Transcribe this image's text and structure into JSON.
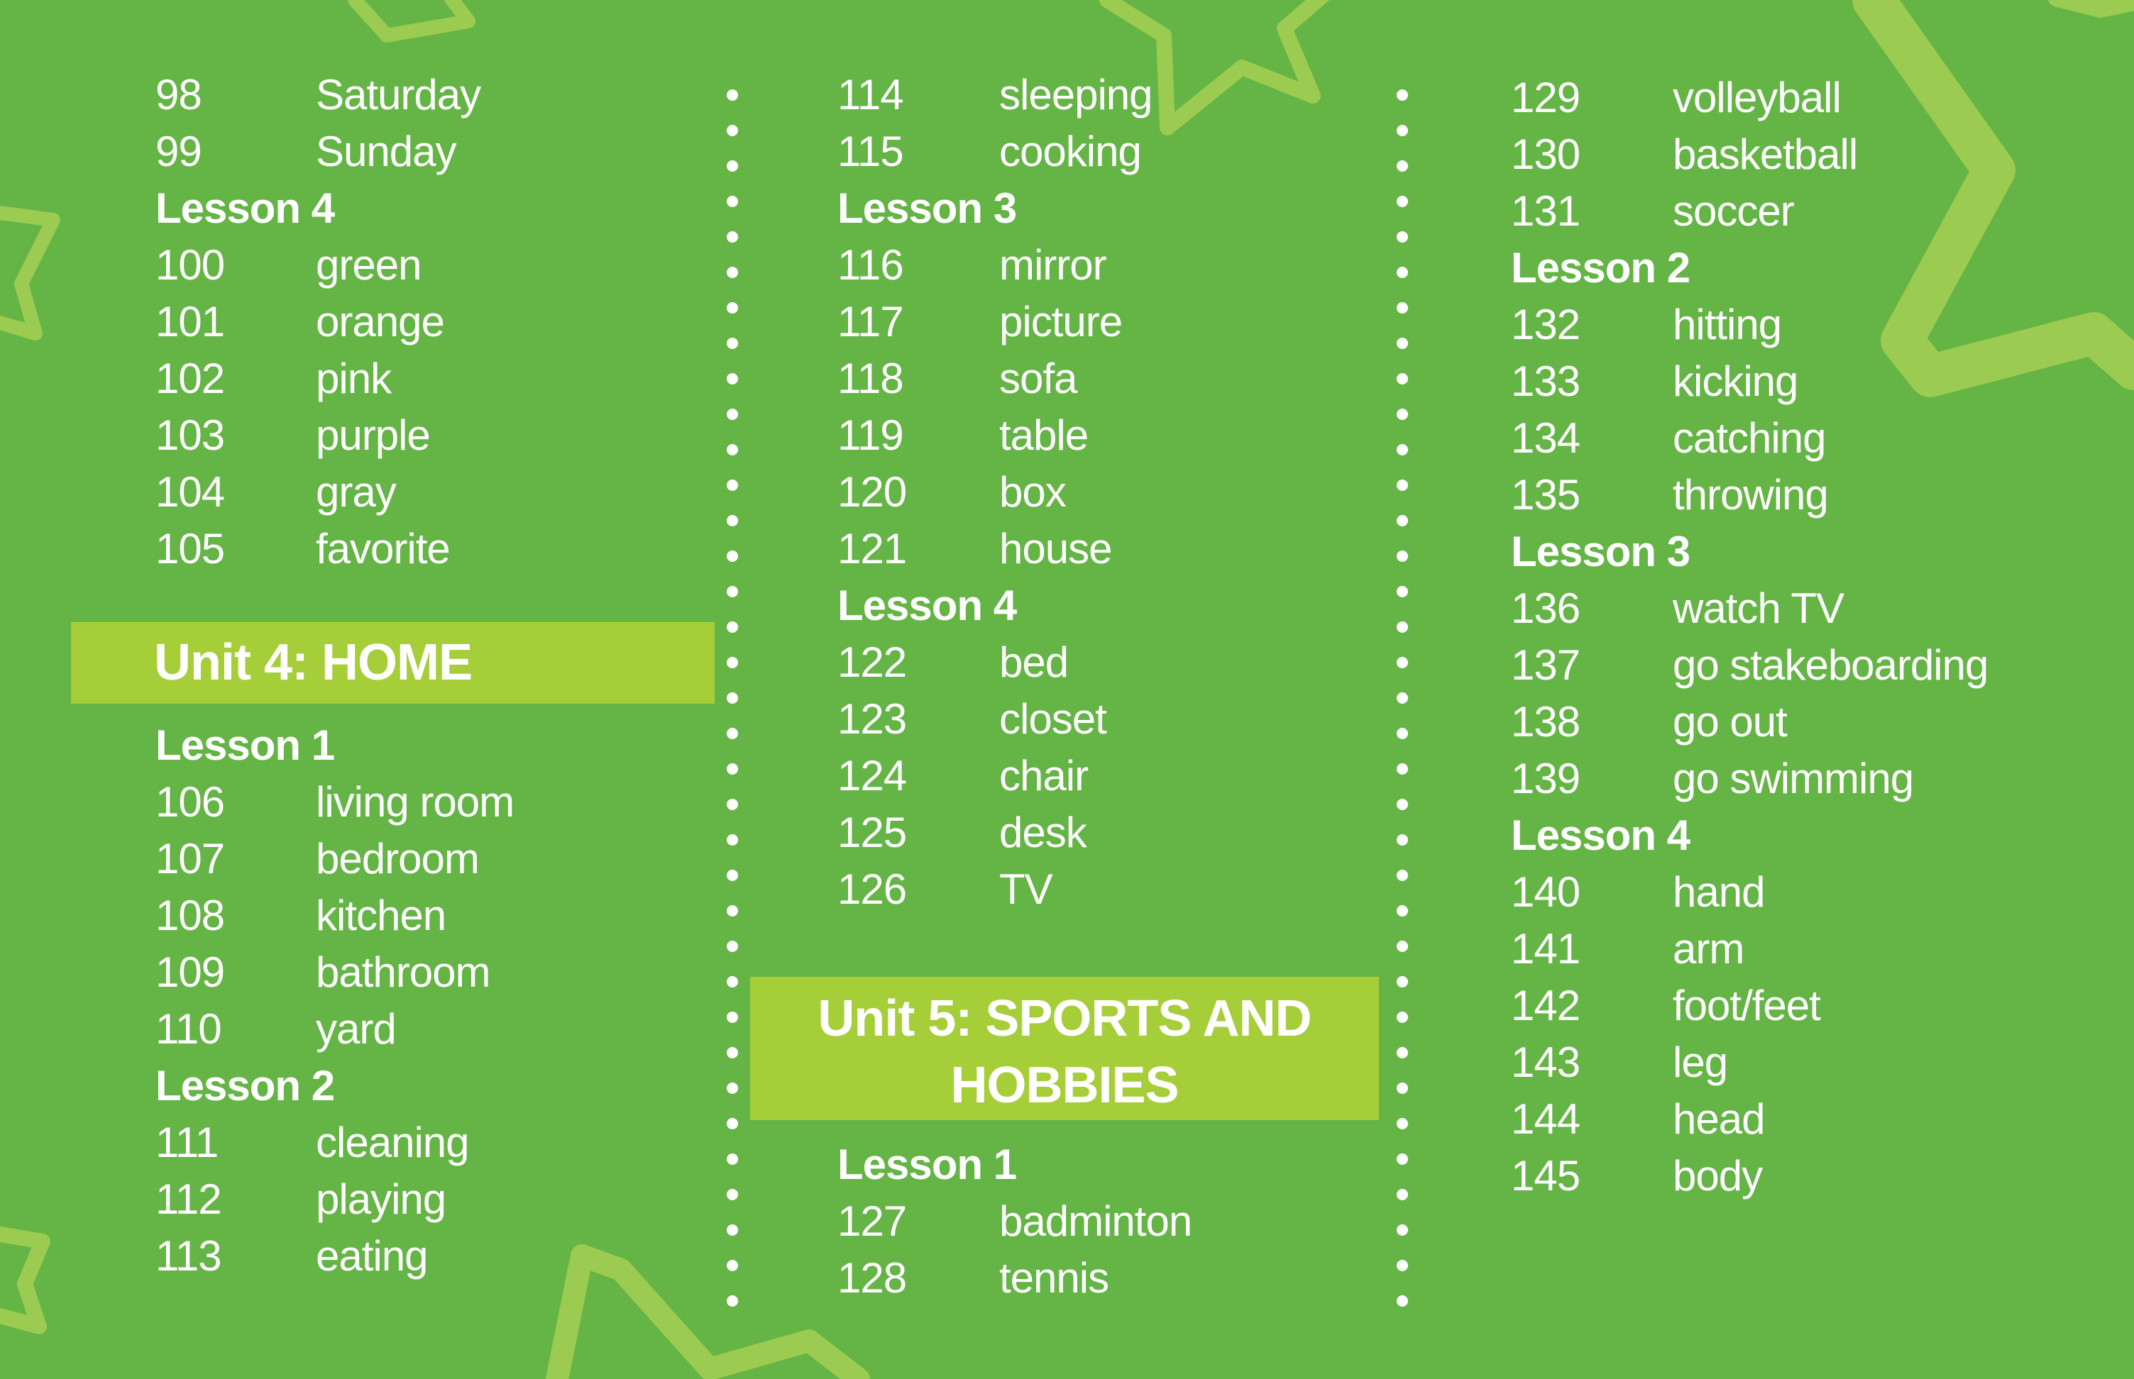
{
  "colors": {
    "background": "#65b446",
    "band": "#a6ce39",
    "star_outline": "#9bcb50",
    "text": "#ffffff"
  },
  "column1_top": [
    {
      "num": "98",
      "word": "Saturday"
    },
    {
      "num": "99",
      "word": "Sunday"
    },
    {
      "lesson": "Lesson 4"
    },
    {
      "num": "100",
      "word": "green"
    },
    {
      "num": "101",
      "word": "orange"
    },
    {
      "num": "102",
      "word": "pink"
    },
    {
      "num": "103",
      "word": "purple"
    },
    {
      "num": "104",
      "word": "gray"
    },
    {
      "num": "105",
      "word": "favorite"
    }
  ],
  "unit4": {
    "title": "Unit 4: HOME"
  },
  "column1_bottom": [
    {
      "lesson": "Lesson 1"
    },
    {
      "num": "106",
      "word": "living room"
    },
    {
      "num": "107",
      "word": "bedroom"
    },
    {
      "num": "108",
      "word": "kitchen"
    },
    {
      "num": "109",
      "word": "bathroom"
    },
    {
      "num": "110",
      "word": "yard"
    },
    {
      "lesson": "Lesson 2"
    },
    {
      "num": "111",
      "word": "cleaning"
    },
    {
      "num": "112",
      "word": "playing"
    },
    {
      "num": "113",
      "word": "eating"
    }
  ],
  "column2_top": [
    {
      "num": "114",
      "word": "sleeping"
    },
    {
      "num": "115",
      "word": "cooking"
    },
    {
      "lesson": "Lesson 3"
    },
    {
      "num": "116",
      "word": "mirror"
    },
    {
      "num": "117",
      "word": "picture"
    },
    {
      "num": "118",
      "word": "sofa"
    },
    {
      "num": "119",
      "word": "table"
    },
    {
      "num": "120",
      "word": "box"
    },
    {
      "num": "121",
      "word": "house"
    },
    {
      "lesson": "Lesson 4"
    },
    {
      "num": "122",
      "word": "bed"
    },
    {
      "num": "123",
      "word": "closet"
    },
    {
      "num": "124",
      "word": "chair"
    },
    {
      "num": "125",
      "word": "desk"
    },
    {
      "num": "126",
      "word": "TV"
    }
  ],
  "unit5": {
    "title_line1": "Unit 5: SPORTS AND",
    "title_line2": "HOBBIES"
  },
  "column2_bottom": [
    {
      "lesson": "Lesson 1"
    },
    {
      "num": "127",
      "word": "badminton"
    },
    {
      "num": "128",
      "word": "tennis"
    }
  ],
  "column3": [
    {
      "num": "129",
      "word": "volleyball"
    },
    {
      "num": "130",
      "word": "basketball"
    },
    {
      "num": "131",
      "word": "soccer"
    },
    {
      "lesson": "Lesson 2"
    },
    {
      "num": "132",
      "word": "hitting"
    },
    {
      "num": "133",
      "word": "kicking"
    },
    {
      "num": "134",
      "word": "catching"
    },
    {
      "num": "135",
      "word": "throwing"
    },
    {
      "lesson": "Lesson 3"
    },
    {
      "num": "136",
      "word": "watch TV"
    },
    {
      "num": "137",
      "word": "go stakeboarding"
    },
    {
      "num": "138",
      "word": "go out"
    },
    {
      "num": "139",
      "word": "go swimming"
    },
    {
      "lesson": "Lesson 4"
    },
    {
      "num": "140",
      "word": "hand"
    },
    {
      "num": "141",
      "word": "arm"
    },
    {
      "num": "142",
      "word": "foot/feet"
    },
    {
      "num": "143",
      "word": "leg"
    },
    {
      "num": "144",
      "word": "head"
    },
    {
      "num": "145",
      "word": "body"
    }
  ]
}
